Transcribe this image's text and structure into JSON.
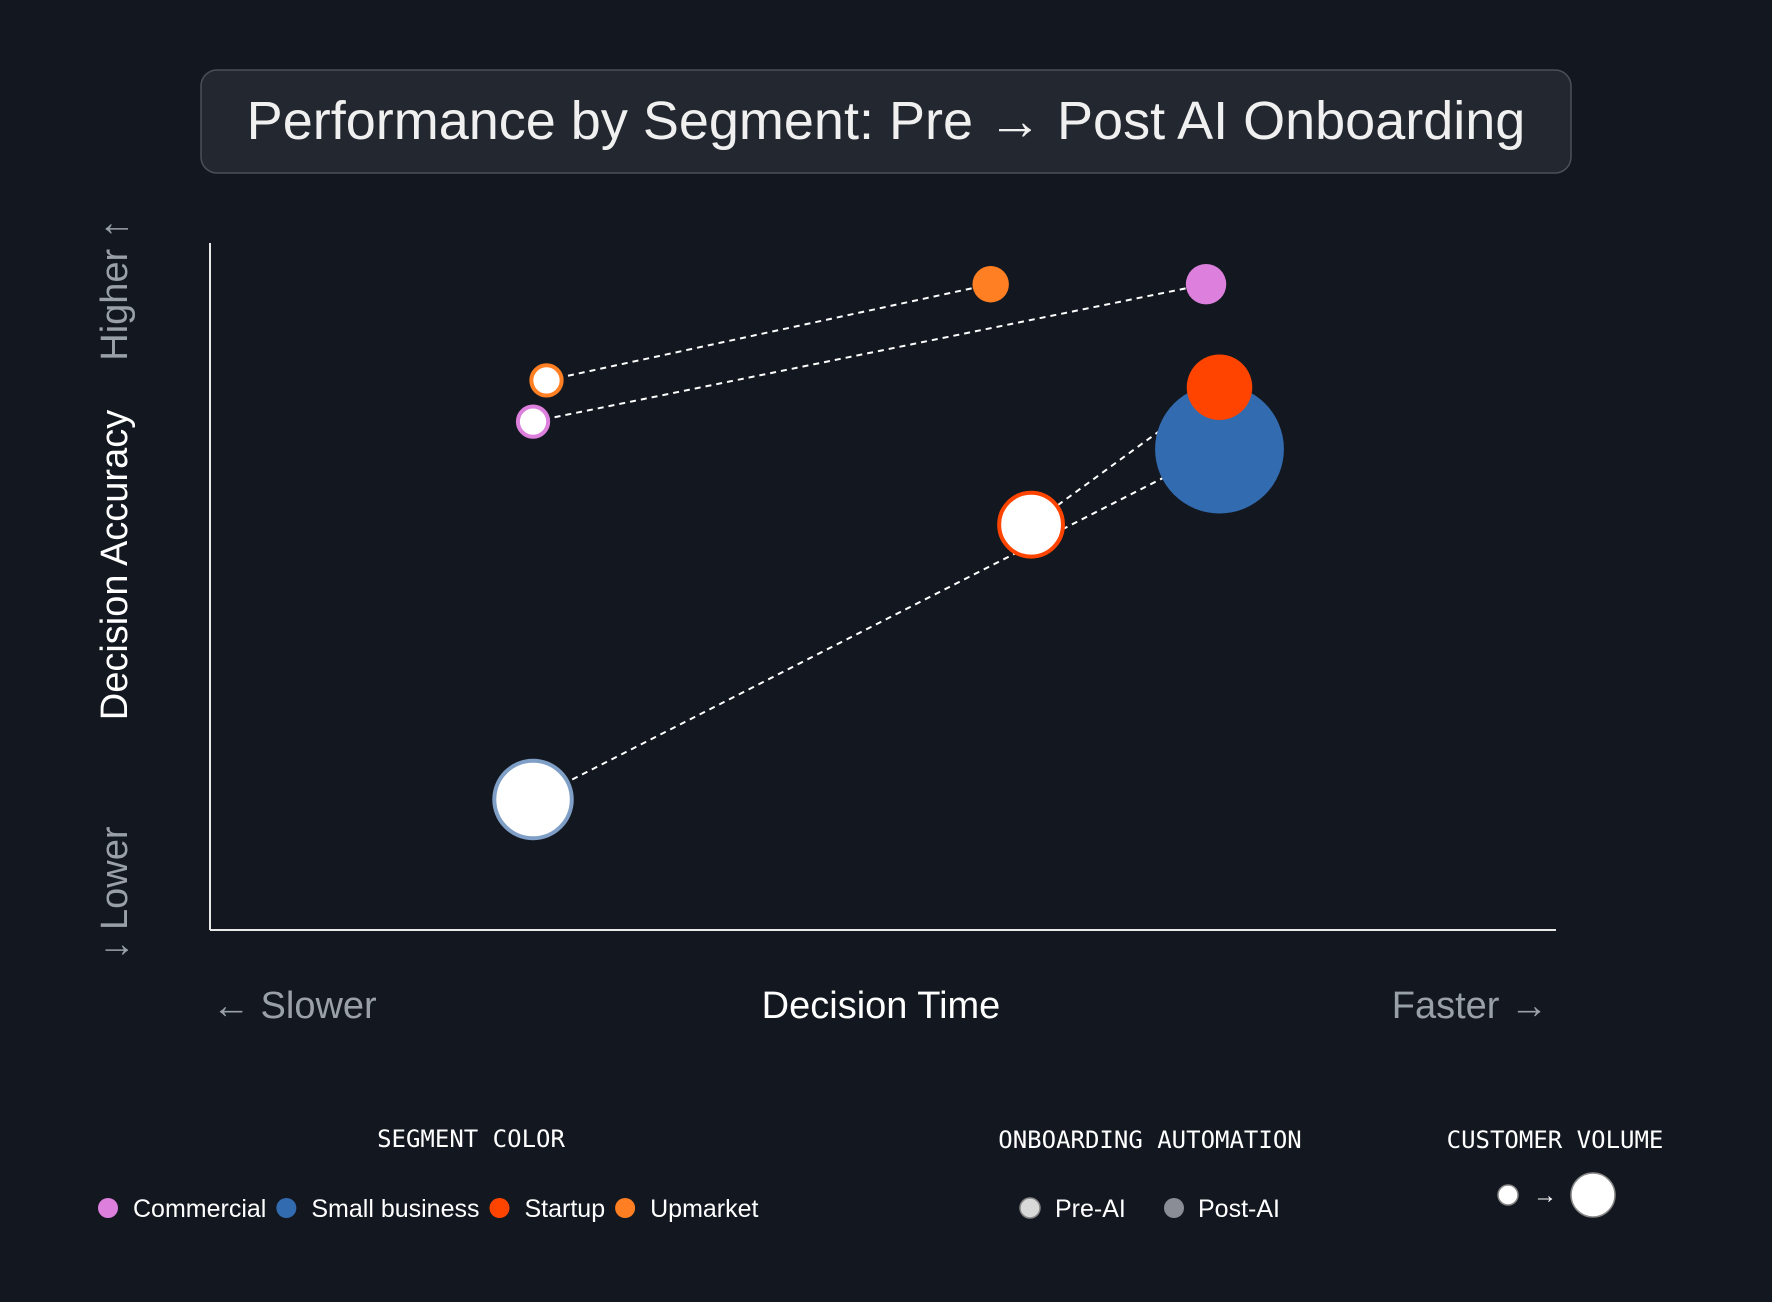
{
  "chart_data": {
    "type": "scatter",
    "title": "Performance by Segment: Pre → Post AI Onboarding",
    "xlabel": "Decision Time",
    "ylabel": "Decision Accuracy",
    "x_low_label": "← Slower",
    "x_high_label": "Faster →",
    "y_low_label": "↓ Lower",
    "y_high_label": "Higher ↑",
    "xlim": [
      0,
      100
    ],
    "ylim": [
      0,
      100
    ],
    "grid": false,
    "legend_placement": "bottom",
    "series": [
      {
        "name": "Commercial",
        "color": "#dd80dd",
        "pre": {
          "x": 24,
          "y": 74,
          "volume": 2.3
        },
        "post": {
          "x": 74,
          "y": 94,
          "volume": 3.2
        }
      },
      {
        "name": "Small business",
        "color": "#336bb0",
        "pre_stroke": "#7f9fc7",
        "pre": {
          "x": 24,
          "y": 19,
          "volume": 13
        },
        "post": {
          "x": 75,
          "y": 70,
          "volume": 32.5
        }
      },
      {
        "name": "Startup",
        "color": "#ff4400",
        "pre": {
          "x": 61,
          "y": 59,
          "volume": 9
        },
        "post": {
          "x": 75,
          "y": 79,
          "volume": 8.4
        }
      },
      {
        "name": "Upmarket",
        "color": "#ff7f22",
        "pre": {
          "x": 25,
          "y": 80,
          "volume": 2.3
        },
        "post": {
          "x": 58,
          "y": 94,
          "volume": 2.6
        }
      }
    ]
  },
  "legend": {
    "segment_title": "SEGMENT COLOR",
    "automation_title": "ONBOARDING AUTOMATION",
    "automation_items": [
      {
        "label": "Pre-AI",
        "color": "#d9d9d9"
      },
      {
        "label": "Post-AI",
        "color": "#8a8d96"
      }
    ],
    "volume_title": "CUSTOMER VOLUME",
    "volume_arrow": "→"
  }
}
